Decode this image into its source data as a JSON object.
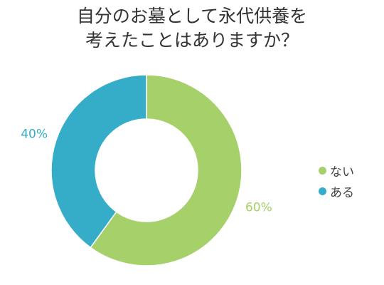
{
  "chart_data": {
    "type": "pie",
    "variant": "donut",
    "title_lines": [
      "自分のお墓として永代供養を",
      "考えたことはありますか？"
    ],
    "categories": [
      "ない",
      "ある"
    ],
    "values": [
      60,
      40
    ],
    "value_labels": [
      "60%",
      "40%"
    ],
    "colors": [
      "#a5d06a",
      "#35adc9"
    ],
    "start_angle_deg": 0,
    "direction": "clockwise",
    "legend_position": "right"
  }
}
